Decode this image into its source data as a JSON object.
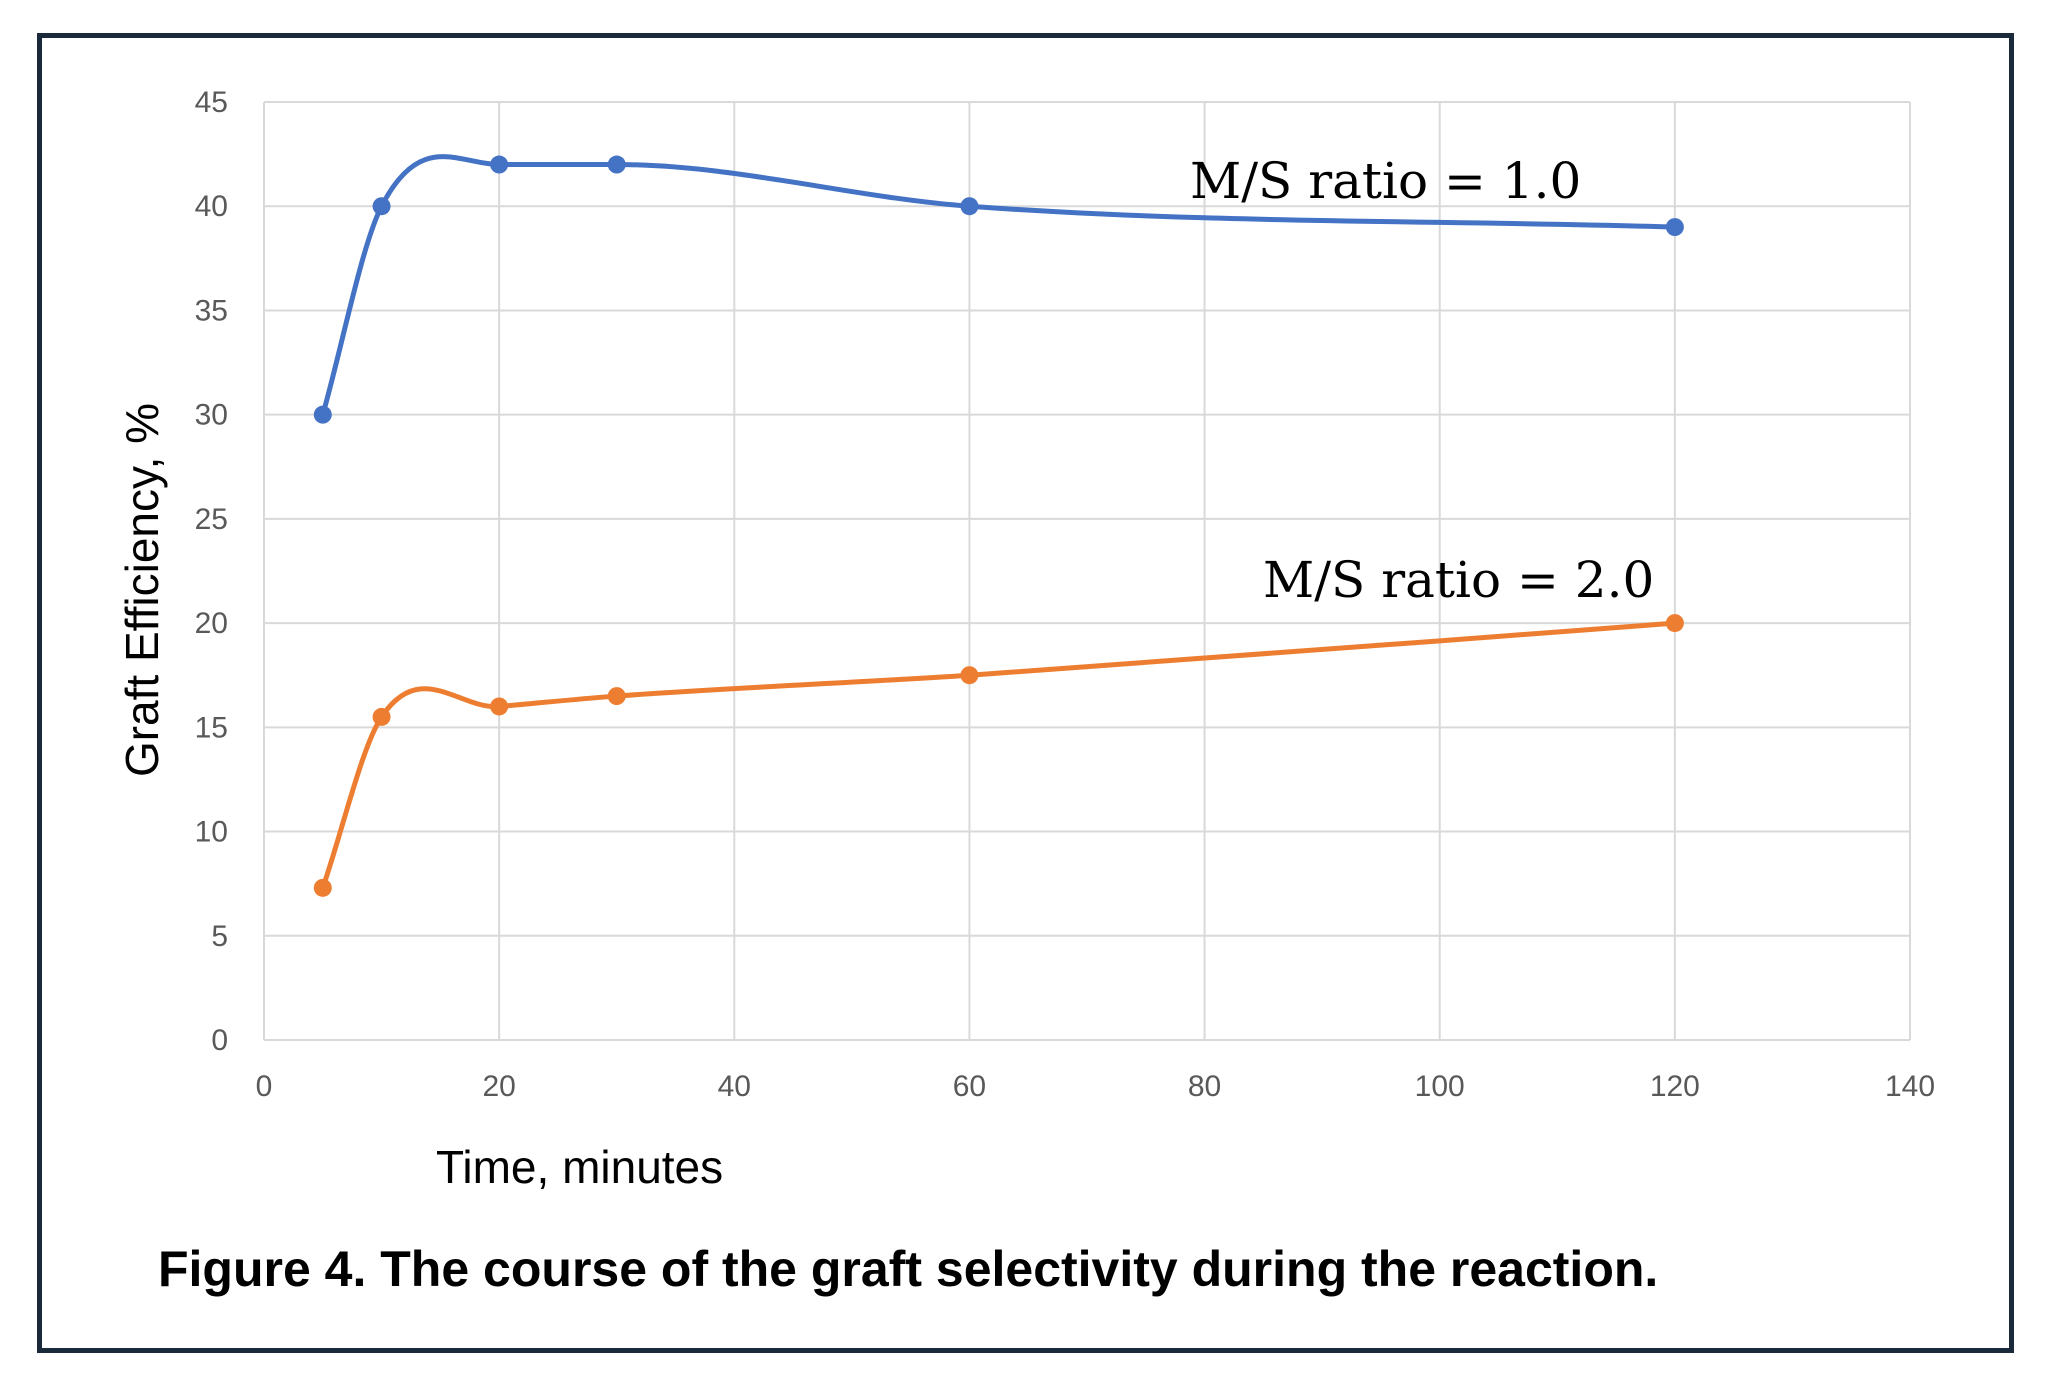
{
  "caption": "Figure 4. The course of the graft selectivity during the reaction.",
  "chart_data": {
    "type": "line",
    "xlabel": "Time, minutes",
    "ylabel": "Graft Efficiency, %",
    "xlim": [
      0,
      140
    ],
    "ylim": [
      0,
      45
    ],
    "xticks": [
      0,
      20,
      40,
      60,
      80,
      100,
      120,
      140
    ],
    "yticks": [
      0,
      5,
      10,
      15,
      20,
      25,
      30,
      35,
      40,
      45
    ],
    "grid": true,
    "smooth": true,
    "series": [
      {
        "name": "M/S ratio = 1.0",
        "color": "#4472c4",
        "x": [
          5,
          10,
          20,
          30,
          60,
          120
        ],
        "y": [
          30,
          40,
          42,
          42,
          40,
          39
        ]
      },
      {
        "name": "M/S ratio = 2.0",
        "color": "#ed7d31",
        "x": [
          5,
          10,
          20,
          30,
          60,
          120
        ],
        "y": [
          7.3,
          15.5,
          16,
          16.5,
          17.5,
          20
        ]
      }
    ]
  }
}
